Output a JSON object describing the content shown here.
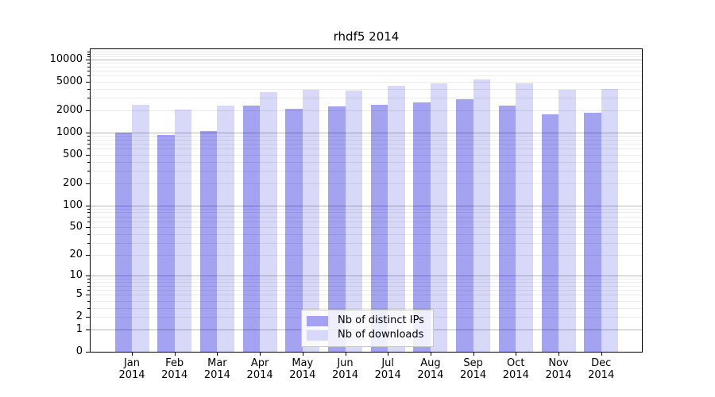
{
  "chart_data": {
    "type": "bar",
    "title": "rhdf5 2014",
    "yscale": "log10(1+x)",
    "ylim": [
      0,
      14000
    ],
    "grid": "both",
    "yticks": [
      10000,
      5000,
      2000,
      1000,
      500,
      200,
      100,
      50,
      20,
      10,
      5,
      2,
      1,
      0
    ],
    "categories": [
      "Jan",
      "Feb",
      "Mar",
      "Apr",
      "May",
      "Jun",
      "Jul",
      "Aug",
      "Sep",
      "Oct",
      "Nov",
      "Dec"
    ],
    "category_year": "2014",
    "legend_position": "inside lower center",
    "series": [
      {
        "name": "Nb of distinct IPs",
        "color": "#a3a3f2",
        "values": [
          1000,
          930,
          1040,
          2320,
          2140,
          2270,
          2380,
          2570,
          2860,
          2320,
          1770,
          1880
        ]
      },
      {
        "name": "Nb of downloads",
        "color": "#d8d8f8",
        "values": [
          2420,
          2080,
          2360,
          3580,
          3840,
          3800,
          4420,
          4720,
          5350,
          4690,
          3890,
          3990
        ]
      }
    ]
  }
}
